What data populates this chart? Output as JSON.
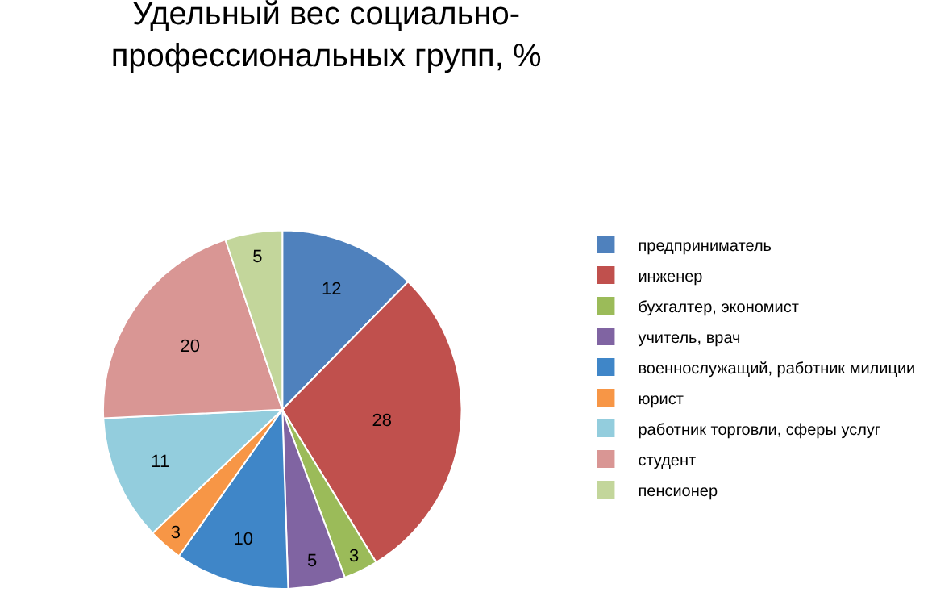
{
  "chart_data": {
    "type": "pie",
    "title": "Удельный вес социально-профессиональных групп, %",
    "categories": [
      "предприниматель",
      "инженер",
      "бухгалтер, экономист",
      "учитель, врач",
      "военнослужащий, работник милиции",
      "юрист",
      "работник торговли, сферы услуг",
      "студент",
      "пенсионер"
    ],
    "values": [
      12,
      28,
      3,
      5,
      10,
      3,
      11,
      20,
      5
    ],
    "colors": [
      "#4f81bd",
      "#c0504d",
      "#9bbb59",
      "#8064a2",
      "#3f86c8",
      "#f79646",
      "#93cddd",
      "#d99694",
      "#c3d69b"
    ],
    "data_labels": true,
    "legend": "right"
  }
}
